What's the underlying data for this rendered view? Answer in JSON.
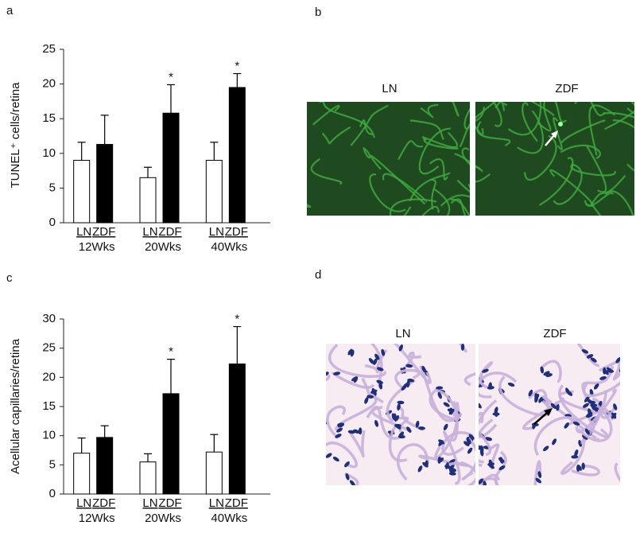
{
  "chart_data": [
    {
      "type": "bar",
      "panel": "a",
      "y_label": "TUNEL⁺ cells/retina",
      "categories": [
        "12Wks",
        "20Wks",
        "40Wks"
      ],
      "series": [
        {
          "name": "LN",
          "color": "#ffffff",
          "values": [
            9.0,
            6.5,
            9.0
          ],
          "errors": [
            2.6,
            1.5,
            2.6
          ]
        },
        {
          "name": "ZDF",
          "color": "#000000",
          "values": [
            11.3,
            15.8,
            19.5
          ],
          "errors": [
            4.2,
            4.1,
            2.0
          ],
          "markers": [
            null,
            "*",
            "*"
          ]
        }
      ],
      "ylim": [
        0,
        25
      ],
      "yticks": [
        0,
        5,
        10,
        15,
        20,
        25
      ],
      "grid": false
    },
    {
      "type": "bar",
      "panel": "c",
      "y_label": "Acellular capillaries/retina",
      "categories": [
        "12Wks",
        "20Wks",
        "40Wks"
      ],
      "series": [
        {
          "name": "LN",
          "color": "#ffffff",
          "values": [
            7.0,
            5.5,
            7.2
          ],
          "errors": [
            2.6,
            1.4,
            3.0
          ]
        },
        {
          "name": "ZDF",
          "color": "#000000",
          "values": [
            9.7,
            17.2,
            22.3
          ],
          "errors": [
            2.0,
            5.9,
            6.4
          ],
          "markers": [
            null,
            "*",
            "*"
          ]
        }
      ],
      "ylim": [
        0,
        30
      ],
      "yticks": [
        0,
        5,
        10,
        15,
        20,
        25,
        30
      ],
      "grid": false
    }
  ],
  "panels": [
    {
      "label": "b",
      "images": [
        {
          "label": "LN"
        },
        {
          "label": "ZDF"
        }
      ]
    },
    {
      "label": "d",
      "images": [
        {
          "label": "LN"
        },
        {
          "label": "ZDF"
        }
      ]
    }
  ]
}
